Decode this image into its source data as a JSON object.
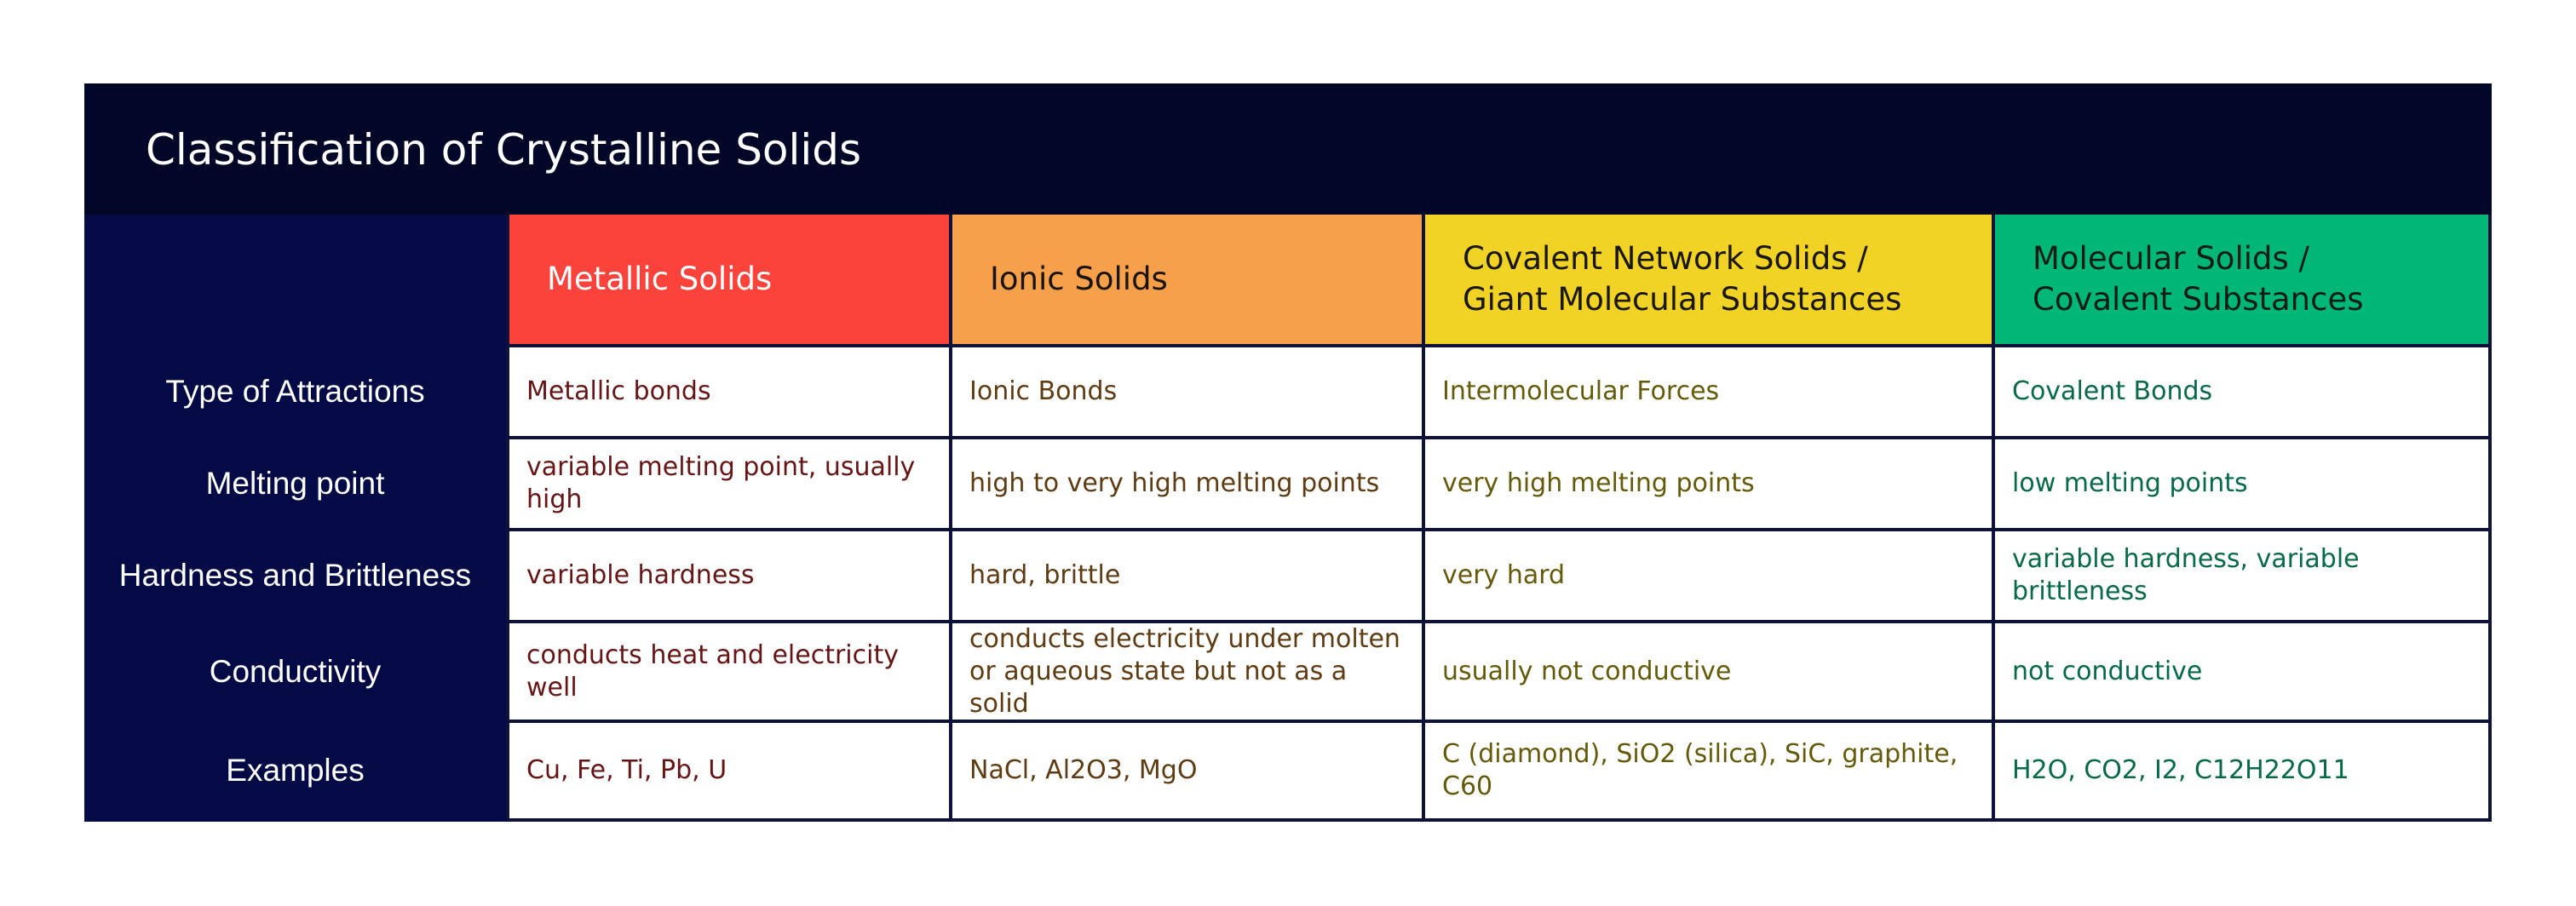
{
  "title": "Classification of Crystalline Solids",
  "columns": [
    "Metallic Solids",
    "Ionic Solids",
    "Covalent Network Solids / Giant Molecular Substances",
    "Molecular Solids / Covalent Substances"
  ],
  "rows": [
    {
      "label": "Type of Attractions",
      "cells": [
        "Metallic bonds",
        "Ionic Bonds",
        "Intermolecular Forces",
        "Covalent Bonds"
      ]
    },
    {
      "label": "Melting point",
      "cells": [
        "variable melting point, usually high",
        "high to very high melting points",
        "very high melting points",
        "low melting points"
      ]
    },
    {
      "label": "Hardness and Brittleness",
      "cells": [
        "variable hardness",
        "hard, brittle",
        "very hard",
        "variable hardness, variable brittleness"
      ]
    },
    {
      "label": "Conductivity",
      "cells": [
        "conducts heat and electricity well",
        "conducts electricity under molten or aqueous state but not as a solid",
        "usually not conductive",
        "not conductive"
      ]
    },
    {
      "label": "Examples",
      "cells": [
        "Cu, Fe, Ti, Pb, U",
        "NaCl, Al2O3, MgO",
        "C (diamond), SiO2 (silica), SiC, graphite, C60",
        "H2O, CO2, I2, C12H22O11"
      ]
    }
  ],
  "colors": {
    "background_panel": "#020627",
    "row_header": "#030a45",
    "metallic": "#fb433c",
    "ionic": "#f6a04b",
    "covalent_network": "#f0d324",
    "molecular": "#00b777"
  }
}
